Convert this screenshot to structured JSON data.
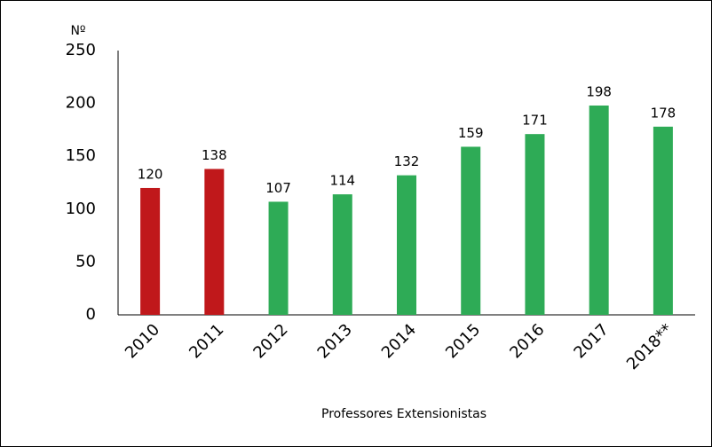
{
  "chart_data": {
    "type": "bar",
    "y_label": "Nº",
    "x_label": "Professores Extensionistas",
    "categories": [
      "2010",
      "2011",
      "2012",
      "2013",
      "2014",
      "2015",
      "2016",
      "2017",
      "2018**"
    ],
    "values": [
      120,
      138,
      107,
      114,
      132,
      159,
      171,
      198,
      178
    ],
    "colors": [
      "#c0181b",
      "#c0181b",
      "#2eab56",
      "#2eab56",
      "#2eab56",
      "#2eab56",
      "#2eab56",
      "#2eab56",
      "#2eab56"
    ],
    "ylim": [
      0,
      250
    ],
    "yticks": [
      0,
      50,
      100,
      150,
      200,
      250
    ],
    "grid": false
  }
}
